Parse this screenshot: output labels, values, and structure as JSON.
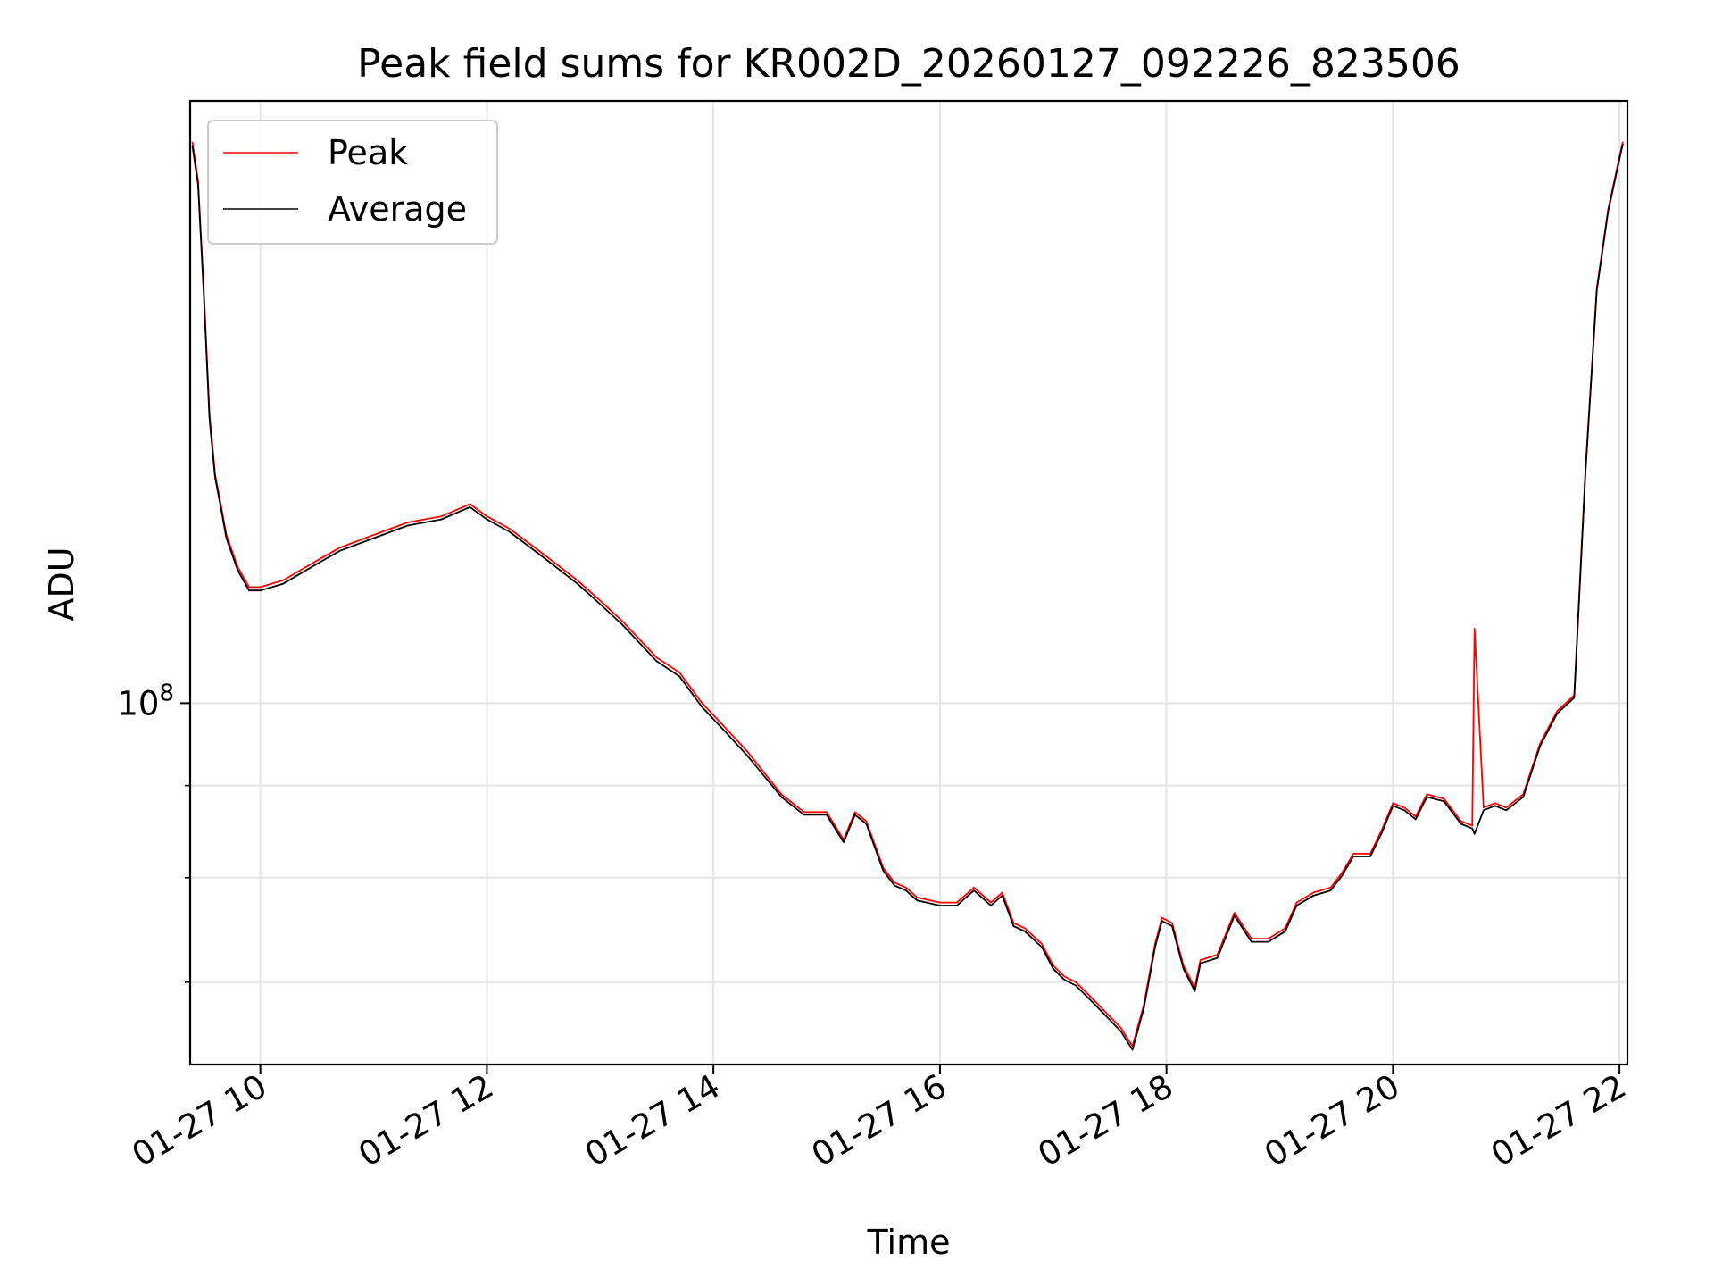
{
  "chart_data": {
    "type": "line",
    "title": "Peak field sums for KR002D_20260127_092226_823506",
    "xlabel": "Time",
    "ylabel": "ADU",
    "x_unit": "hour of 2026-01-27",
    "yscale": "log",
    "xlim": [
      9.38,
      22.07
    ],
    "ylim": [
      63000000,
      216000000
    ],
    "x_ticks": [
      {
        "value": 10,
        "label": "01-27 10"
      },
      {
        "value": 12,
        "label": "01-27 12"
      },
      {
        "value": 14,
        "label": "01-27 14"
      },
      {
        "value": 16,
        "label": "01-27 16"
      },
      {
        "value": 18,
        "label": "01-27 18"
      },
      {
        "value": 20,
        "label": "01-27 20"
      },
      {
        "value": 22,
        "label": "01-27 22"
      }
    ],
    "y_major_ticks": [
      {
        "value": 100000000,
        "label_base": "10",
        "label_exp": "8"
      }
    ],
    "y_minor_ticks": [
      70000000,
      80000000,
      90000000
    ],
    "grid": true,
    "legend_position": "top-left",
    "series": [
      {
        "name": "Peak",
        "color": "#ff0000",
        "x": [
          9.4,
          9.45,
          9.5,
          9.55,
          9.6,
          9.65,
          9.7,
          9.8,
          9.9,
          10.0,
          10.2,
          10.5,
          10.7,
          11.0,
          11.3,
          11.6,
          11.85,
          12.0,
          12.2,
          12.5,
          12.8,
          13.0,
          13.2,
          13.5,
          13.7,
          13.9,
          14.1,
          14.3,
          14.6,
          14.8,
          15.0,
          15.15,
          15.25,
          15.35,
          15.5,
          15.6,
          15.7,
          15.8,
          16.0,
          16.15,
          16.3,
          16.45,
          16.55,
          16.65,
          16.75,
          16.9,
          17.0,
          17.1,
          17.2,
          17.35,
          17.5,
          17.6,
          17.7,
          17.8,
          17.9,
          17.96,
          18.05,
          18.15,
          18.25,
          18.3,
          18.45,
          18.6,
          18.75,
          18.9,
          19.05,
          19.15,
          19.3,
          19.45,
          19.55,
          19.65,
          19.8,
          19.9,
          20.0,
          20.1,
          20.2,
          20.3,
          20.45,
          20.6,
          20.7,
          20.72,
          20.8,
          20.9,
          21.0,
          21.15,
          21.3,
          21.45,
          21.6,
          21.7,
          21.8,
          21.9,
          22.0,
          22.03
        ],
        "y": [
          205000000,
          195000000,
          170000000,
          145000000,
          134000000,
          129000000,
          124000000,
          119000000,
          116000000,
          116000000,
          117000000,
          120000000,
          122000000,
          124000000,
          126000000,
          127000000,
          129000000,
          127000000,
          125000000,
          121000000,
          117000000,
          114000000,
          111000000,
          106000000,
          104000000,
          100000000,
          97000000,
          94000000,
          89000000,
          87000000,
          87000000,
          84000000,
          87000000,
          86000000,
          81000000,
          79500000,
          79000000,
          78000000,
          77500000,
          77500000,
          79000000,
          77500000,
          78500000,
          75500000,
          75000000,
          73500000,
          71500000,
          70500000,
          70000000,
          68500000,
          67000000,
          66000000,
          64500000,
          68000000,
          73500000,
          76000000,
          75500000,
          71500000,
          69500000,
          72000000,
          72500000,
          76500000,
          74000000,
          74000000,
          75000000,
          77500000,
          78500000,
          79000000,
          80500000,
          82500000,
          82500000,
          85000000,
          88000000,
          87500000,
          86500000,
          89000000,
          88500000,
          86000000,
          85500000,
          110000000,
          87500000,
          88000000,
          87500000,
          89000000,
          95000000,
          99000000,
          101000000,
          135000000,
          170000000,
          188000000,
          201000000,
          205000000
        ]
      },
      {
        "name": "Average",
        "color": "#000000",
        "x": [
          9.4,
          9.45,
          9.5,
          9.55,
          9.6,
          9.65,
          9.7,
          9.8,
          9.9,
          10.0,
          10.2,
          10.5,
          10.7,
          11.0,
          11.3,
          11.6,
          11.85,
          12.0,
          12.2,
          12.5,
          12.8,
          13.0,
          13.2,
          13.5,
          13.7,
          13.9,
          14.1,
          14.3,
          14.6,
          14.8,
          15.0,
          15.15,
          15.25,
          15.35,
          15.5,
          15.6,
          15.7,
          15.8,
          16.0,
          16.15,
          16.3,
          16.45,
          16.55,
          16.65,
          16.75,
          16.9,
          17.0,
          17.1,
          17.2,
          17.35,
          17.5,
          17.6,
          17.7,
          17.8,
          17.9,
          17.96,
          18.05,
          18.15,
          18.25,
          18.3,
          18.45,
          18.6,
          18.75,
          18.9,
          19.05,
          19.15,
          19.3,
          19.45,
          19.55,
          19.65,
          19.8,
          19.9,
          20.0,
          20.1,
          20.2,
          20.3,
          20.45,
          20.6,
          20.7,
          20.72,
          20.8,
          20.9,
          21.0,
          21.15,
          21.3,
          21.45,
          21.6,
          21.7,
          21.8,
          21.9,
          22.0,
          22.03
        ],
        "y": [
          204000000,
          194000000,
          169000000,
          144000000,
          133500000,
          128500000,
          123500000,
          118500000,
          115500000,
          115500000,
          116500000,
          119500000,
          121500000,
          123500000,
          125500000,
          126500000,
          128500000,
          126500000,
          124500000,
          120500000,
          116500000,
          113500000,
          110500000,
          105500000,
          103500000,
          99500000,
          96500000,
          93500000,
          88700000,
          86700000,
          86700000,
          83700000,
          86700000,
          85700000,
          80700000,
          79200000,
          78700000,
          77700000,
          77200000,
          77200000,
          78700000,
          77200000,
          78200000,
          75200000,
          74700000,
          73200000,
          71200000,
          70200000,
          69700000,
          68200000,
          66700000,
          65700000,
          64200000,
          67700000,
          73200000,
          75700000,
          75200000,
          71200000,
          69200000,
          71700000,
          72200000,
          76200000,
          73700000,
          73700000,
          74700000,
          77200000,
          78200000,
          78700000,
          80200000,
          82200000,
          82200000,
          84700000,
          87700000,
          87200000,
          86200000,
          88700000,
          88200000,
          85700000,
          85200000,
          84600000,
          87200000,
          87700000,
          87200000,
          88700000,
          94700000,
          98700000,
          100700000,
          134500000,
          169500000,
          187500000,
          200500000,
          204500000
        ]
      }
    ]
  }
}
